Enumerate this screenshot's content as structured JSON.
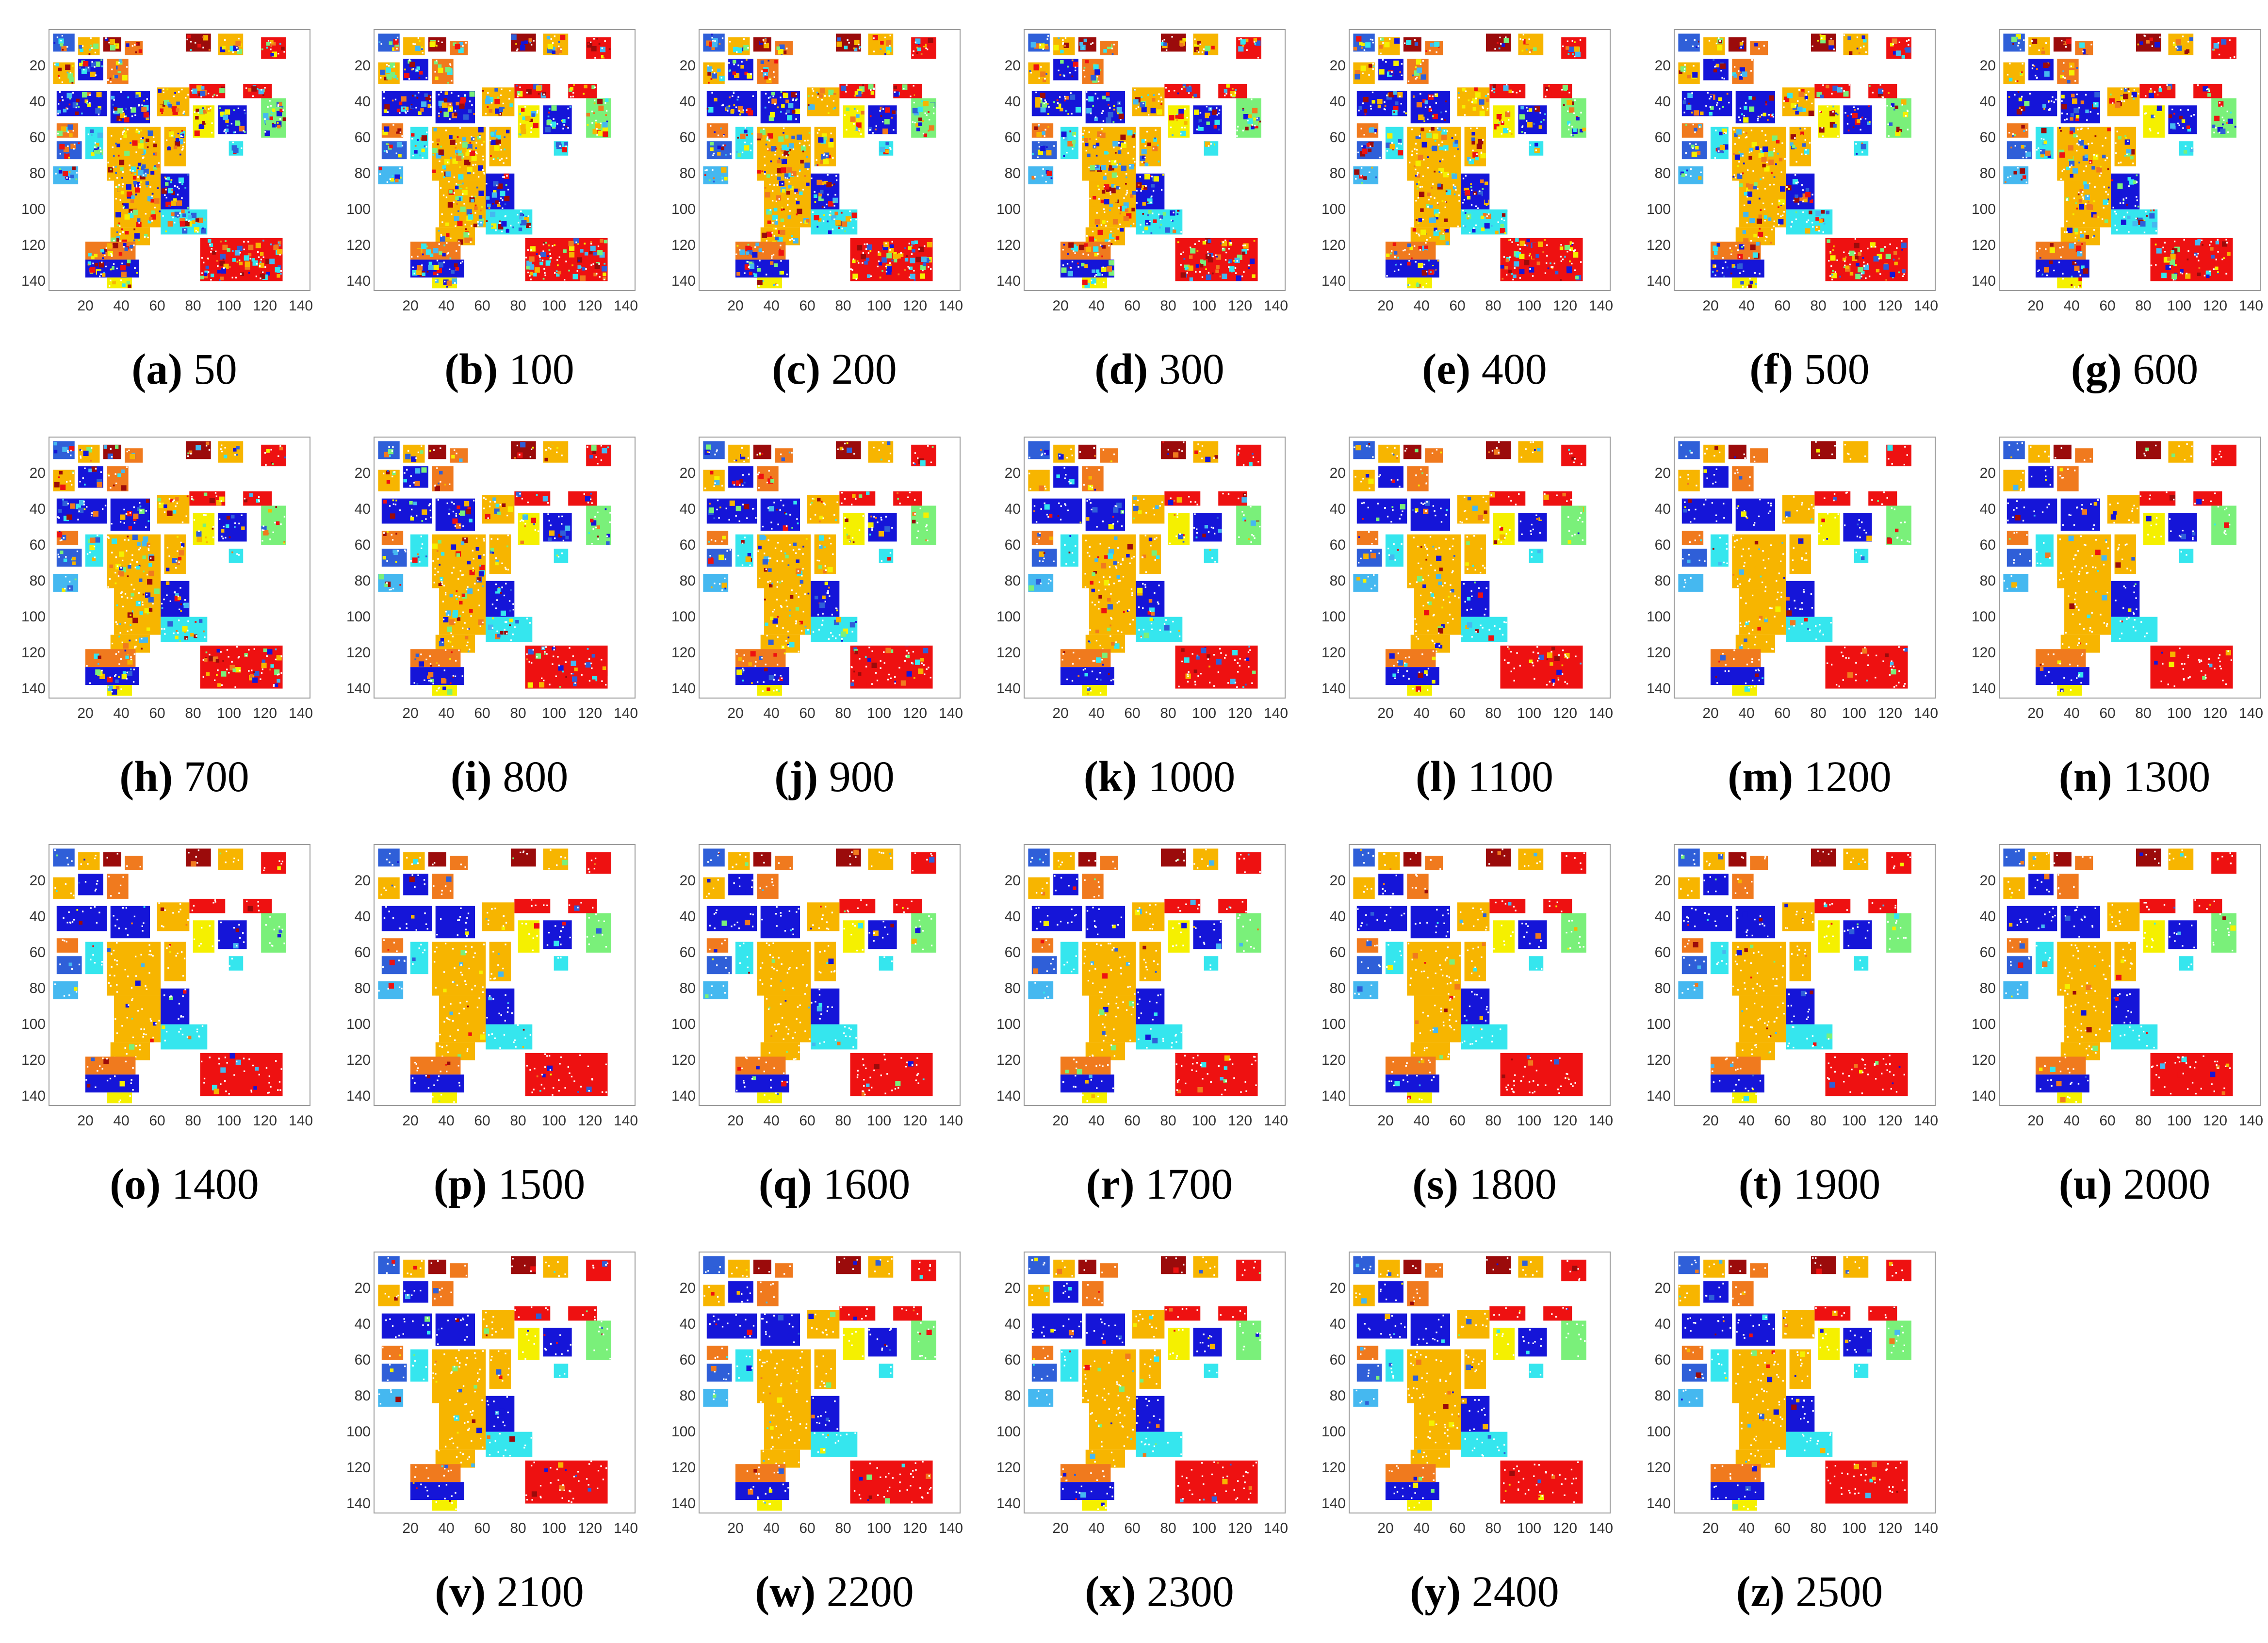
{
  "axis": {
    "y_ticks": [
      "20",
      "40",
      "60",
      "80",
      "100",
      "120",
      "140"
    ],
    "x_ticks": [
      "20",
      "40",
      "60",
      "80",
      "100",
      "120",
      "140"
    ]
  },
  "colors": {
    "red": "#ee1111",
    "dark_red": "#9b0b0b",
    "yellow": "#f5f000",
    "orange": "#f7b500",
    "dark_orange": "#f07a1e",
    "blue": "#1515d8",
    "mid_blue": "#2f5fd8",
    "cyan": "#35e6ee",
    "light_blue": "#45b8f0",
    "green": "#7af07a"
  },
  "panels": [
    {
      "label": "(a)",
      "value": "50"
    },
    {
      "label": "(b)",
      "value": "100"
    },
    {
      "label": "(c)",
      "value": "200"
    },
    {
      "label": "(d)",
      "value": "300"
    },
    {
      "label": "(e)",
      "value": "400"
    },
    {
      "label": "(f)",
      "value": "500"
    },
    {
      "label": "(g)",
      "value": "600"
    },
    {
      "label": "(h)",
      "value": "700"
    },
    {
      "label": "(i)",
      "value": "800"
    },
    {
      "label": "(j)",
      "value": "900"
    },
    {
      "label": "(k)",
      "value": "1000"
    },
    {
      "label": "(l)",
      "value": "1100"
    },
    {
      "label": "(m)",
      "value": "1200"
    },
    {
      "label": "(n)",
      "value": "1300"
    },
    {
      "label": "(o)",
      "value": "1400"
    },
    {
      "label": "(p)",
      "value": "1500"
    },
    {
      "label": "(q)",
      "value": "1600"
    },
    {
      "label": "(r)",
      "value": "1700"
    },
    {
      "label": "(s)",
      "value": "1800"
    },
    {
      "label": "(t)",
      "value": "1900"
    },
    {
      "label": "(u)",
      "value": "2000"
    },
    {
      "label": "(v)",
      "value": "2100"
    },
    {
      "label": "(w)",
      "value": "2200"
    },
    {
      "label": "(x)",
      "value": "2300"
    },
    {
      "label": "(y)",
      "value": "2400"
    },
    {
      "label": "(z)",
      "value": "2500"
    }
  ]
}
